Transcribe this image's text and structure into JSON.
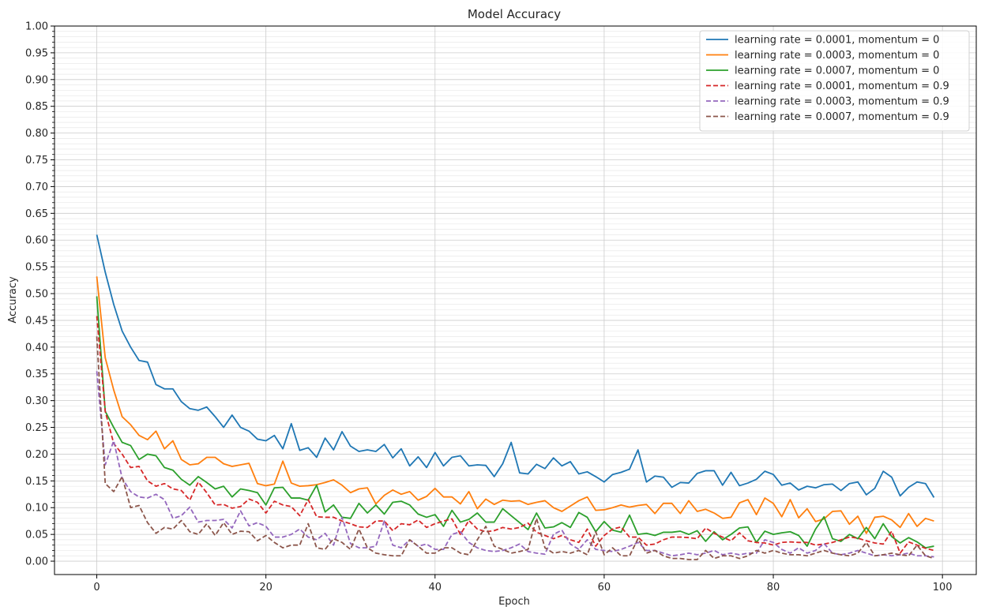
{
  "chart_data": {
    "type": "line",
    "title": "Model Accuracy",
    "xlabel": "Epoch",
    "ylabel": "Accuracy",
    "xlim": [
      -5,
      104
    ],
    "ylim": [
      -0.025,
      1.0
    ],
    "x_ticks": [
      0,
      20,
      40,
      60,
      80,
      100
    ],
    "x_tick_labels": [
      "0",
      "20",
      "40",
      "60",
      "80",
      "100"
    ],
    "y_ticks": [
      0.0,
      0.05,
      0.1,
      0.15,
      0.2,
      0.25,
      0.3,
      0.35,
      0.4,
      0.45,
      0.5,
      0.55,
      0.6,
      0.65,
      0.7,
      0.75,
      0.8,
      0.85,
      0.9,
      0.95,
      1.0
    ],
    "y_tick_labels": [
      "0.00",
      "0.05",
      "0.10",
      "0.15",
      "0.20",
      "0.25",
      "0.30",
      "0.35",
      "0.40",
      "0.45",
      "0.50",
      "0.55",
      "0.60",
      "0.65",
      "0.70",
      "0.75",
      "0.80",
      "0.85",
      "0.90",
      "0.95",
      "1.00"
    ],
    "grid": true,
    "legend_position": "top-right",
    "series": [
      {
        "name": "learning rate = 0.0001, momentum = 0",
        "color": "#1f77b4",
        "dash": "solid",
        "values": [
          0.61,
          0.54,
          0.48,
          0.43,
          0.4,
          0.375,
          0.372,
          0.33,
          0.322,
          0.322,
          0.298,
          0.285,
          0.282,
          0.288,
          0.27,
          0.25,
          0.273,
          0.25,
          0.243,
          0.228,
          0.225,
          0.235,
          0.21,
          0.257,
          0.207,
          0.212,
          0.194,
          0.23,
          0.208,
          0.242,
          0.215,
          0.205,
          0.208,
          0.205,
          0.218,
          0.193,
          0.21,
          0.178,
          0.195,
          0.175,
          0.203,
          0.178,
          0.194,
          0.197,
          0.178,
          0.18,
          0.179,
          0.158,
          0.182,
          0.222,
          0.165,
          0.163,
          0.181,
          0.173,
          0.193,
          0.178,
          0.186,
          0.163,
          0.167,
          0.158,
          0.148,
          0.162,
          0.166,
          0.172,
          0.208,
          0.148,
          0.159,
          0.157,
          0.138,
          0.147,
          0.146,
          0.164,
          0.169,
          0.169,
          0.142,
          0.166,
          0.141,
          0.146,
          0.153,
          0.168,
          0.162,
          0.142,
          0.146,
          0.133,
          0.14,
          0.137,
          0.143,
          0.144,
          0.132,
          0.145,
          0.148,
          0.124,
          0.136,
          0.168,
          0.157,
          0.122,
          0.138,
          0.148,
          0.145,
          0.119
        ]
      },
      {
        "name": "learning rate = 0.0003, momentum = 0",
        "color": "#ff7f0e",
        "dash": "solid",
        "values": [
          0.532,
          0.38,
          0.32,
          0.27,
          0.255,
          0.235,
          0.227,
          0.243,
          0.21,
          0.225,
          0.19,
          0.18,
          0.182,
          0.194,
          0.194,
          0.182,
          0.177,
          0.18,
          0.183,
          0.145,
          0.141,
          0.144,
          0.187,
          0.146,
          0.14,
          0.141,
          0.143,
          0.147,
          0.152,
          0.142,
          0.128,
          0.135,
          0.137,
          0.107,
          0.123,
          0.133,
          0.125,
          0.13,
          0.114,
          0.121,
          0.136,
          0.12,
          0.12,
          0.107,
          0.13,
          0.098,
          0.116,
          0.106,
          0.114,
          0.112,
          0.113,
          0.106,
          0.11,
          0.113,
          0.1,
          0.093,
          0.103,
          0.113,
          0.12,
          0.095,
          0.096,
          0.1,
          0.105,
          0.101,
          0.104,
          0.106,
          0.089,
          0.108,
          0.108,
          0.089,
          0.113,
          0.093,
          0.097,
          0.09,
          0.08,
          0.082,
          0.109,
          0.115,
          0.087,
          0.118,
          0.108,
          0.083,
          0.115,
          0.081,
          0.098,
          0.074,
          0.079,
          0.093,
          0.094,
          0.069,
          0.084,
          0.052,
          0.082,
          0.084,
          0.077,
          0.063,
          0.089,
          0.065,
          0.08,
          0.075
        ]
      },
      {
        "name": "learning rate = 0.0007, momentum = 0",
        "color": "#2ca02c",
        "dash": "solid",
        "values": [
          0.495,
          0.28,
          0.25,
          0.222,
          0.216,
          0.19,
          0.2,
          0.197,
          0.175,
          0.17,
          0.153,
          0.142,
          0.158,
          0.147,
          0.135,
          0.14,
          0.12,
          0.135,
          0.132,
          0.128,
          0.105,
          0.137,
          0.138,
          0.118,
          0.118,
          0.114,
          0.142,
          0.092,
          0.105,
          0.082,
          0.08,
          0.108,
          0.09,
          0.105,
          0.088,
          0.11,
          0.112,
          0.105,
          0.088,
          0.082,
          0.087,
          0.065,
          0.095,
          0.073,
          0.078,
          0.09,
          0.073,
          0.073,
          0.098,
          0.085,
          0.072,
          0.059,
          0.09,
          0.062,
          0.064,
          0.072,
          0.063,
          0.091,
          0.082,
          0.055,
          0.074,
          0.058,
          0.054,
          0.086,
          0.05,
          0.052,
          0.048,
          0.054,
          0.054,
          0.056,
          0.05,
          0.057,
          0.037,
          0.055,
          0.04,
          0.05,
          0.062,
          0.064,
          0.035,
          0.056,
          0.05,
          0.053,
          0.055,
          0.048,
          0.028,
          0.06,
          0.083,
          0.042,
          0.037,
          0.05,
          0.042,
          0.063,
          0.042,
          0.07,
          0.046,
          0.034,
          0.044,
          0.036,
          0.025,
          0.028
        ]
      },
      {
        "name": "learning rate = 0.0001, momentum = 0.9",
        "color": "#d62728",
        "dash": "dashed",
        "values": [
          0.458,
          0.28,
          0.22,
          0.2,
          0.175,
          0.177,
          0.15,
          0.14,
          0.145,
          0.135,
          0.132,
          0.114,
          0.148,
          0.128,
          0.105,
          0.106,
          0.099,
          0.102,
          0.116,
          0.11,
          0.09,
          0.112,
          0.105,
          0.102,
          0.085,
          0.115,
          0.083,
          0.082,
          0.082,
          0.075,
          0.07,
          0.064,
          0.063,
          0.075,
          0.075,
          0.057,
          0.07,
          0.068,
          0.077,
          0.063,
          0.07,
          0.075,
          0.079,
          0.05,
          0.076,
          0.06,
          0.055,
          0.057,
          0.063,
          0.06,
          0.063,
          0.071,
          0.054,
          0.048,
          0.042,
          0.048,
          0.04,
          0.035,
          0.06,
          0.028,
          0.048,
          0.06,
          0.064,
          0.045,
          0.045,
          0.03,
          0.032,
          0.04,
          0.045,
          0.045,
          0.044,
          0.042,
          0.062,
          0.052,
          0.045,
          0.038,
          0.053,
          0.038,
          0.035,
          0.034,
          0.03,
          0.035,
          0.036,
          0.035,
          0.035,
          0.03,
          0.032,
          0.035,
          0.04,
          0.045,
          0.043,
          0.038,
          0.034,
          0.032,
          0.056,
          0.015,
          0.036,
          0.03,
          0.024,
          0.02
        ]
      },
      {
        "name": "learning rate = 0.0003, momentum = 0.9",
        "color": "#9467bd",
        "dash": "dashed",
        "values": [
          0.355,
          0.18,
          0.225,
          0.155,
          0.13,
          0.12,
          0.118,
          0.125,
          0.115,
          0.08,
          0.085,
          0.101,
          0.073,
          0.076,
          0.076,
          0.078,
          0.062,
          0.094,
          0.066,
          0.072,
          0.065,
          0.045,
          0.045,
          0.05,
          0.06,
          0.045,
          0.04,
          0.052,
          0.03,
          0.082,
          0.033,
          0.025,
          0.025,
          0.028,
          0.075,
          0.03,
          0.025,
          0.04,
          0.028,
          0.032,
          0.022,
          0.022,
          0.05,
          0.055,
          0.035,
          0.025,
          0.02,
          0.018,
          0.02,
          0.025,
          0.032,
          0.018,
          0.015,
          0.013,
          0.05,
          0.058,
          0.032,
          0.022,
          0.04,
          0.022,
          0.02,
          0.018,
          0.022,
          0.028,
          0.035,
          0.02,
          0.02,
          0.015,
          0.01,
          0.012,
          0.015,
          0.012,
          0.015,
          0.02,
          0.012,
          0.015,
          0.012,
          0.015,
          0.015,
          0.04,
          0.035,
          0.022,
          0.015,
          0.025,
          0.015,
          0.02,
          0.033,
          0.015,
          0.012,
          0.015,
          0.02,
          0.015,
          0.01,
          0.012,
          0.01,
          0.012,
          0.015,
          0.01,
          0.01,
          0.008
        ]
      },
      {
        "name": "learning rate = 0.0007, momentum = 0.9",
        "color": "#8c564b",
        "dash": "dashed",
        "values": [
          0.42,
          0.145,
          0.13,
          0.158,
          0.1,
          0.104,
          0.072,
          0.052,
          0.063,
          0.06,
          0.076,
          0.055,
          0.05,
          0.07,
          0.048,
          0.072,
          0.05,
          0.056,
          0.055,
          0.038,
          0.048,
          0.035,
          0.025,
          0.03,
          0.03,
          0.07,
          0.025,
          0.022,
          0.042,
          0.035,
          0.022,
          0.06,
          0.025,
          0.015,
          0.012,
          0.01,
          0.01,
          0.04,
          0.028,
          0.015,
          0.015,
          0.025,
          0.025,
          0.015,
          0.012,
          0.04,
          0.065,
          0.028,
          0.022,
          0.015,
          0.018,
          0.022,
          0.08,
          0.025,
          0.015,
          0.018,
          0.015,
          0.02,
          0.012,
          0.055,
          0.012,
          0.025,
          0.01,
          0.01,
          0.042,
          0.015,
          0.02,
          0.01,
          0.005,
          0.005,
          0.003,
          0.003,
          0.02,
          0.005,
          0.01,
          0.01,
          0.005,
          0.01,
          0.02,
          0.015,
          0.02,
          0.015,
          0.012,
          0.012,
          0.01,
          0.015,
          0.02,
          0.015,
          0.012,
          0.01,
          0.015,
          0.035,
          0.01,
          0.012,
          0.015,
          0.012,
          0.01,
          0.03,
          0.01,
          0.005
        ]
      }
    ]
  }
}
